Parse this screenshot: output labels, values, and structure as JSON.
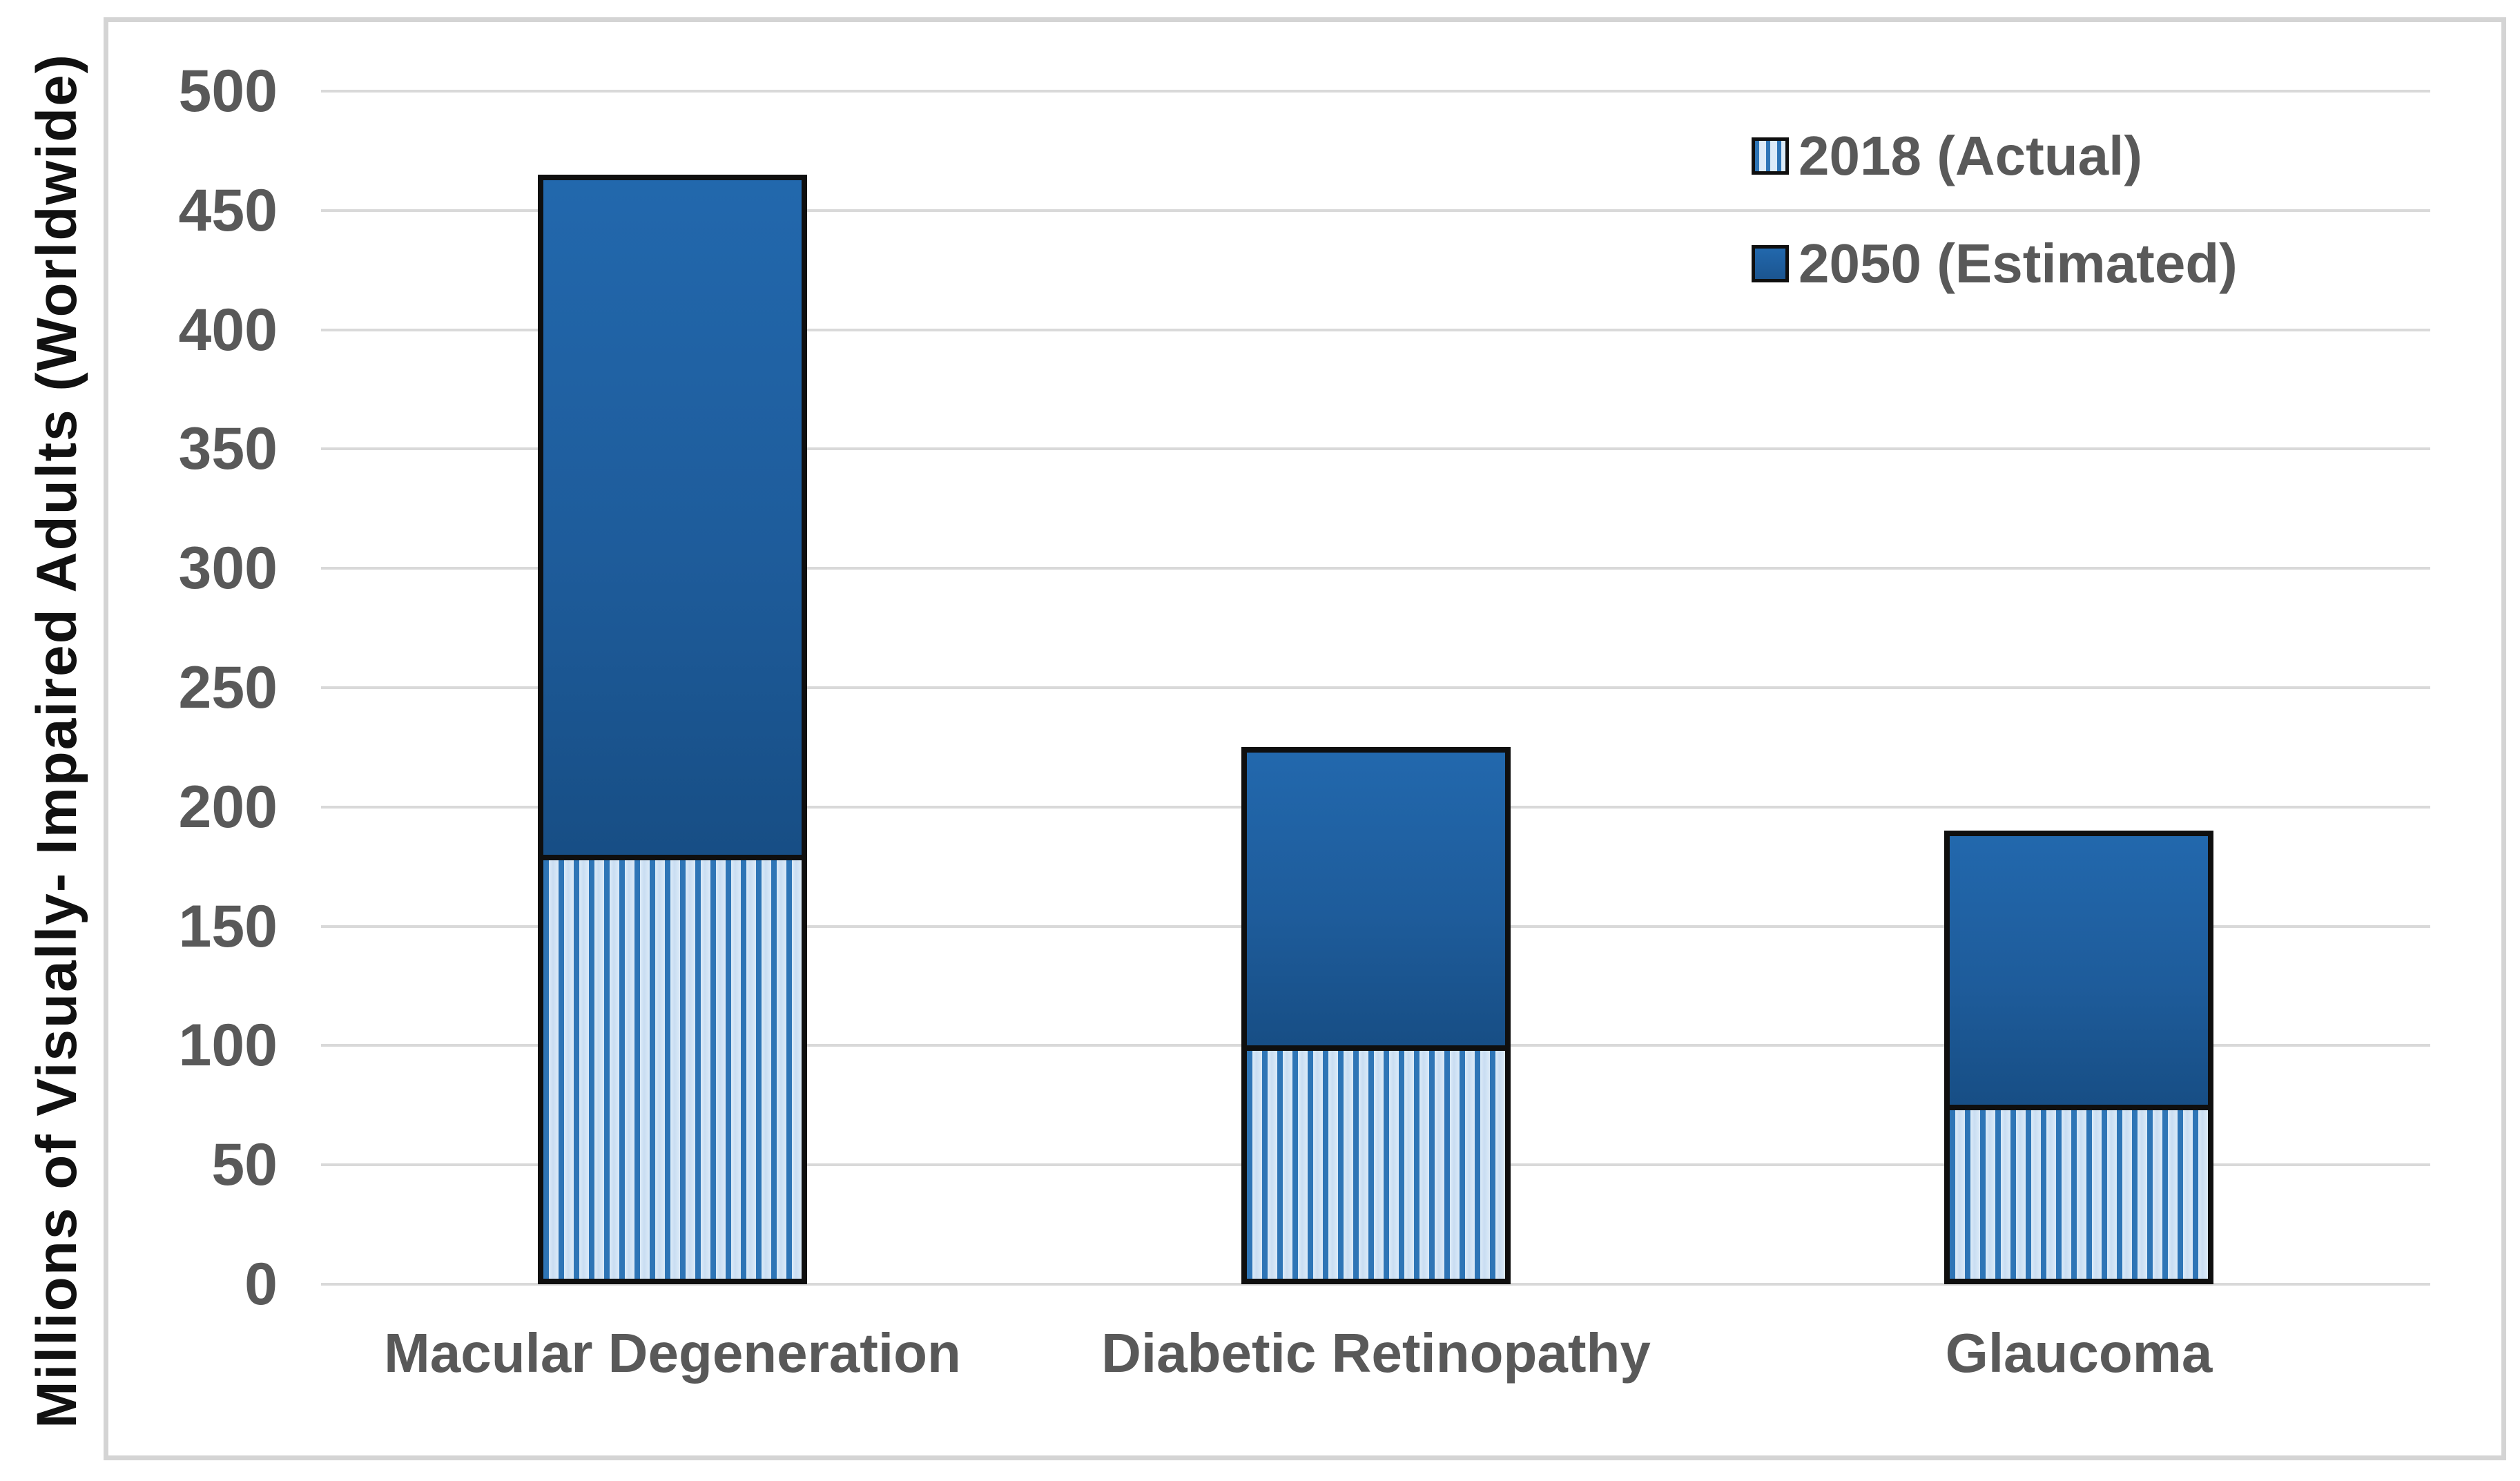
{
  "chart_data": {
    "type": "bar",
    "stacked": true,
    "title": "",
    "xlabel": "",
    "ylabel": "Millions of Visually- Impaired Adults (Worldwide)",
    "categories": [
      "Macular Degeneration",
      "Diabetic Retinopathy",
      "Glaucoma"
    ],
    "series": [
      {
        "name": "2018 (Actual)",
        "style": "striped",
        "values": [
          180,
          100,
          75
        ]
      },
      {
        "name": "2050 (Estimated)",
        "style": "solid",
        "values": [
          285,
          125,
          115
        ]
      }
    ],
    "stack_totals": [
      465,
      225,
      190
    ],
    "ylim": [
      0,
      500
    ],
    "ytick_step": 50,
    "yticks": [
      0,
      50,
      100,
      150,
      200,
      250,
      300,
      350,
      400,
      450,
      500
    ],
    "grid": true,
    "legend_position": "top-right"
  },
  "colors": {
    "solid_series": "#1e5c9b",
    "stripe_series": "#2e75b6",
    "stripe_background": "#dcebf8",
    "bar_border": "#0f0f0f",
    "gridline": "#d9d9d9",
    "frame_border": "#d4d4d4",
    "axis_text": "#595959",
    "y_title_text": "#111111",
    "background": "#ffffff"
  }
}
